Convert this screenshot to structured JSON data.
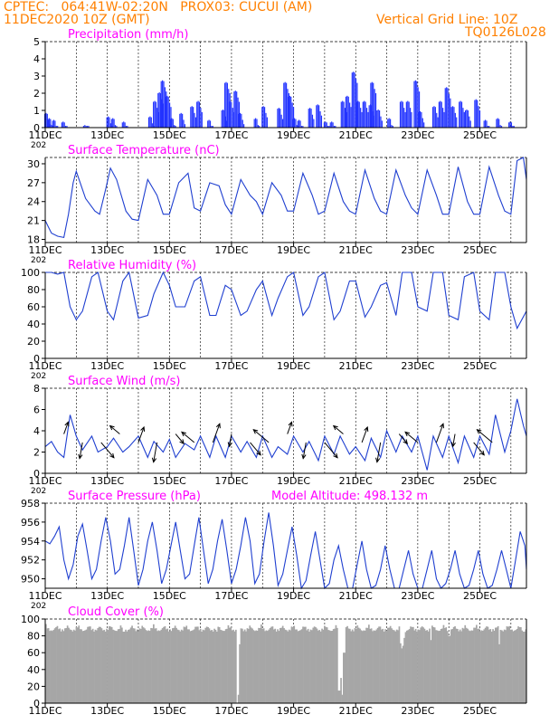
{
  "header": {
    "line1": "CPTEC:   064:41W-02:20N   PROX03: CUCUI (AM)",
    "line2": "11DEC2020 10Z (GMT)",
    "grid_note": "Vertical Grid Line: 10Z",
    "code": "TQ0126L028"
  },
  "colors": {
    "header": "#ff8000",
    "title": "#ff00ff",
    "line": "#1f3fd0",
    "bar": "#2233ff",
    "cloud": "#a6a6a6",
    "arrow": "#000000"
  },
  "x_axis": {
    "tick_labels": [
      "11DEC",
      "13DEC",
      "15DEC",
      "17DEC",
      "19DEC",
      "21DEC",
      "23DEC",
      "25DEC"
    ],
    "year_stub": "202"
  },
  "model_altitude": "Model Altitude: 498.132 m",
  "chart_data": [
    {
      "id": "precip",
      "type": "bar",
      "title": "Precipitation  (mm/h)",
      "ylim": [
        0,
        5
      ],
      "yticks": [
        0,
        1,
        2,
        3,
        4,
        5
      ],
      "color": "#2233ff",
      "x_range_days": [
        0,
        15.5
      ],
      "events": [
        [
          0.05,
          0.8
        ],
        [
          0.15,
          0.5
        ],
        [
          0.3,
          0.4
        ],
        [
          0.6,
          0.3
        ],
        [
          1.3,
          0.1
        ],
        [
          2.05,
          0.6
        ],
        [
          2.2,
          0.5
        ],
        [
          2.55,
          0.3
        ],
        [
          3.4,
          0.6
        ],
        [
          3.55,
          1.5
        ],
        [
          3.7,
          2.0
        ],
        [
          3.8,
          2.7
        ],
        [
          3.95,
          1.8
        ],
        [
          4.1,
          0.5
        ],
        [
          4.4,
          0.8
        ],
        [
          4.75,
          1.2
        ],
        [
          4.95,
          1.5
        ],
        [
          5.3,
          0.4
        ],
        [
          5.75,
          1.0
        ],
        [
          5.85,
          2.6
        ],
        [
          5.98,
          1.5
        ],
        [
          6.15,
          2.1
        ],
        [
          6.3,
          0.8
        ],
        [
          6.8,
          0.5
        ],
        [
          7.05,
          1.2
        ],
        [
          7.55,
          1.1
        ],
        [
          7.75,
          2.6
        ],
        [
          7.9,
          1.8
        ],
        [
          8.05,
          0.5
        ],
        [
          8.2,
          0.4
        ],
        [
          8.55,
          1.1
        ],
        [
          8.8,
          1.3
        ],
        [
          9.05,
          0.3
        ],
        [
          9.25,
          0.3
        ],
        [
          9.6,
          1.5
        ],
        [
          9.75,
          1.8
        ],
        [
          9.95,
          3.2
        ],
        [
          10.1,
          1.5
        ],
        [
          10.3,
          1.5
        ],
        [
          10.5,
          1.3
        ],
        [
          10.55,
          2.6
        ],
        [
          10.75,
          1.0
        ],
        [
          11.1,
          0.5
        ],
        [
          11.5,
          1.5
        ],
        [
          11.7,
          1.5
        ],
        [
          11.95,
          2.7
        ],
        [
          12.1,
          0.9
        ],
        [
          12.55,
          1.2
        ],
        [
          12.75,
          1.5
        ],
        [
          12.95,
          2.3
        ],
        [
          13.15,
          1.2
        ],
        [
          13.4,
          1.5
        ],
        [
          13.6,
          1.0
        ],
        [
          13.9,
          1.6
        ],
        [
          14.2,
          0.4
        ],
        [
          14.6,
          0.5
        ],
        [
          15.0,
          0.3
        ]
      ]
    },
    {
      "id": "temp",
      "type": "line",
      "title": "Surface Temperature (nC)",
      "ylim": [
        17.5,
        31
      ],
      "yticks": [
        18,
        21,
        24,
        27,
        30
      ],
      "color": "#1f3fd0",
      "x_range_days": [
        0,
        15.5
      ],
      "x": [
        0,
        0.1,
        0.2,
        0.4,
        0.6,
        0.75,
        0.9,
        1.0,
        1.3,
        1.6,
        1.75,
        1.95,
        2.1,
        2.3,
        2.6,
        2.8,
        3.0,
        3.3,
        3.6,
        3.8,
        4.0,
        4.3,
        4.6,
        4.8,
        5.0,
        5.3,
        5.6,
        5.8,
        6.0,
        6.3,
        6.6,
        6.8,
        7.0,
        7.3,
        7.6,
        7.8,
        8.0,
        8.3,
        8.6,
        8.8,
        9.0,
        9.3,
        9.6,
        9.8,
        10.0,
        10.3,
        10.6,
        10.8,
        11.0,
        11.3,
        11.6,
        11.8,
        12.0,
        12.3,
        12.6,
        12.8,
        13.0,
        13.3,
        13.6,
        13.8,
        14.0,
        14.3,
        14.6,
        14.8,
        15.0,
        15.2,
        15.4,
        15.5
      ],
      "values": [
        21.0,
        20.0,
        19.0,
        18.5,
        18.3,
        22.0,
        27.0,
        28.8,
        24.5,
        22.5,
        22.0,
        26.0,
        29.3,
        27.5,
        22.5,
        21.2,
        21.0,
        27.5,
        25.0,
        22.0,
        22.0,
        27.0,
        28.5,
        23.0,
        22.5,
        27.0,
        26.5,
        23.5,
        22.0,
        27.5,
        25.0,
        24.0,
        22.0,
        27.0,
        25.0,
        22.5,
        22.5,
        28.5,
        25.0,
        22.0,
        22.5,
        28.5,
        24.0,
        22.5,
        22.0,
        29.0,
        24.5,
        22.5,
        22.0,
        29.0,
        25.0,
        23.0,
        22.0,
        29.0,
        25.0,
        22.0,
        22.0,
        29.5,
        24.0,
        22.0,
        22.0,
        29.5,
        25.0,
        22.5,
        22.0,
        30.5,
        31.0,
        27.5
      ]
    },
    {
      "id": "rh",
      "type": "line",
      "title": "Relative Humidity (%)",
      "ylim": [
        0,
        100
      ],
      "yticks": [
        0,
        20,
        40,
        60,
        80,
        100
      ],
      "color": "#1f3fd0",
      "x_range_days": [
        0,
        15.5
      ],
      "x": [
        0,
        0.2,
        0.4,
        0.6,
        0.8,
        1.0,
        1.2,
        1.5,
        1.7,
        2.0,
        2.2,
        2.5,
        2.7,
        3.0,
        3.3,
        3.5,
        3.8,
        4.0,
        4.2,
        4.5,
        4.8,
        5.0,
        5.3,
        5.5,
        5.8,
        6.0,
        6.3,
        6.5,
        6.8,
        7.0,
        7.3,
        7.5,
        7.8,
        8.0,
        8.3,
        8.5,
        8.8,
        9.0,
        9.3,
        9.5,
        9.8,
        10.0,
        10.3,
        10.5,
        10.8,
        11.0,
        11.3,
        11.5,
        11.8,
        12.0,
        12.3,
        12.5,
        12.8,
        13.0,
        13.3,
        13.5,
        13.8,
        14.0,
        14.3,
        14.5,
        14.8,
        15.0,
        15.2,
        15.5
      ],
      "values": [
        100,
        100,
        98,
        100,
        60,
        45,
        55,
        95,
        100,
        55,
        45,
        90,
        100,
        47,
        50,
        75,
        100,
        85,
        60,
        60,
        90,
        95,
        50,
        50,
        85,
        80,
        50,
        55,
        80,
        90,
        50,
        70,
        95,
        100,
        50,
        60,
        95,
        100,
        45,
        55,
        90,
        90,
        48,
        60,
        85,
        88,
        50,
        100,
        100,
        60,
        55,
        100,
        100,
        50,
        45,
        95,
        100,
        55,
        45,
        100,
        100,
        60,
        35,
        55
      ]
    },
    {
      "id": "wind",
      "type": "line",
      "title": "Surface Wind (m/s)",
      "ylim": [
        0,
        8
      ],
      "yticks": [
        0,
        2,
        4,
        6,
        8
      ],
      "color": "#1f3fd0",
      "x_range_days": [
        0,
        15.5
      ],
      "x": [
        0,
        0.2,
        0.4,
        0.6,
        0.8,
        1.0,
        1.2,
        1.5,
        1.7,
        2.0,
        2.2,
        2.5,
        2.7,
        3.0,
        3.3,
        3.5,
        3.8,
        4.0,
        4.2,
        4.5,
        4.8,
        5.0,
        5.3,
        5.5,
        5.8,
        6.0,
        6.3,
        6.5,
        6.8,
        7.0,
        7.3,
        7.5,
        7.8,
        8.0,
        8.3,
        8.5,
        8.8,
        9.0,
        9.3,
        9.5,
        9.8,
        10.0,
        10.3,
        10.5,
        10.8,
        11.0,
        11.3,
        11.5,
        11.8,
        12.0,
        12.3,
        12.5,
        12.8,
        13.0,
        13.3,
        13.5,
        13.8,
        14.0,
        14.3,
        14.5,
        14.8,
        15.0,
        15.2,
        15.4,
        15.5
      ],
      "values": [
        2.5,
        3.0,
        2.0,
        1.5,
        5.5,
        3.5,
        2.2,
        3.5,
        2.0,
        2.5,
        3.3,
        2.0,
        2.5,
        3.5,
        1.5,
        3.0,
        2.0,
        3.2,
        1.5,
        2.8,
        2.2,
        3.5,
        1.5,
        3.5,
        1.5,
        3.5,
        2.0,
        3.0,
        1.5,
        3.5,
        1.5,
        2.5,
        1.8,
        3.5,
        2.0,
        3.0,
        1.2,
        3.5,
        1.8,
        3.5,
        1.8,
        2.5,
        1.2,
        3.3,
        1.5,
        4.0,
        2.0,
        3.5,
        2.0,
        3.5,
        0.3,
        3.5,
        1.5,
        3.5,
        1.0,
        3.5,
        1.5,
        3.5,
        1.8,
        5.5,
        2.0,
        4.0,
        7.0,
        4.5,
        3.5
      ]
    },
    {
      "id": "pressure",
      "type": "line",
      "title": "Surface Pressure (hPa)",
      "ylim": [
        949,
        958
      ],
      "yticks": [
        950,
        952,
        954,
        956,
        958
      ],
      "color": "#1f3fd0",
      "x_range_days": [
        0,
        15.5
      ],
      "x": [
        0,
        0.15,
        0.3,
        0.45,
        0.6,
        0.75,
        0.9,
        1.05,
        1.2,
        1.35,
        1.5,
        1.65,
        1.8,
        1.95,
        2.1,
        2.25,
        2.4,
        2.55,
        2.7,
        2.85,
        3.0,
        3.15,
        3.3,
        3.45,
        3.6,
        3.75,
        3.9,
        4.05,
        4.2,
        4.35,
        4.5,
        4.65,
        4.8,
        4.95,
        5.1,
        5.25,
        5.4,
        5.55,
        5.7,
        5.85,
        6.0,
        6.15,
        6.3,
        6.45,
        6.6,
        6.75,
        6.9,
        7.05,
        7.2,
        7.35,
        7.5,
        7.65,
        7.8,
        7.95,
        8.1,
        8.25,
        8.4,
        8.55,
        8.7,
        8.85,
        9.0,
        9.15,
        9.3,
        9.45,
        9.6,
        9.75,
        9.9,
        10.05,
        10.2,
        10.35,
        10.5,
        10.65,
        10.8,
        10.95,
        11.1,
        11.25,
        11.4,
        11.55,
        11.7,
        11.85,
        12.0,
        12.15,
        12.3,
        12.45,
        12.6,
        12.75,
        12.9,
        13.05,
        13.2,
        13.35,
        13.5,
        13.65,
        13.8,
        13.95,
        14.1,
        14.25,
        14.4,
        14.55,
        14.7,
        14.85,
        15.0,
        15.15,
        15.3,
        15.45,
        15.5
      ],
      "values": [
        954,
        953.7,
        954.5,
        955.5,
        952,
        950,
        951.5,
        954.5,
        955.8,
        953,
        950,
        951,
        954,
        956.5,
        954,
        950.5,
        951,
        953.5,
        956.5,
        953,
        949.3,
        951,
        954,
        956,
        953,
        949.5,
        951,
        953.5,
        956,
        953,
        950,
        950.5,
        953.5,
        956.5,
        953,
        949.5,
        951,
        954,
        956.3,
        953,
        949.5,
        951,
        953.5,
        956.5,
        954,
        949.5,
        950.5,
        954,
        957,
        953.5,
        949.3,
        950.5,
        953,
        955.5,
        952.5,
        949,
        949.8,
        952.5,
        955,
        952,
        949,
        949.5,
        952,
        953.5,
        951,
        949,
        949,
        951.5,
        954,
        951,
        949,
        949.3,
        951,
        953.5,
        951,
        949,
        949,
        951,
        953,
        950.5,
        949,
        949,
        951,
        953,
        950,
        949,
        949.5,
        951,
        953,
        950.5,
        949,
        949.3,
        951,
        953,
        950.5,
        949,
        949.3,
        951,
        953,
        951,
        949,
        952,
        955,
        953.5,
        951
      ]
    },
    {
      "id": "cloud",
      "type": "area",
      "title": "Cloud Cover (%)",
      "ylim": [
        0,
        100
      ],
      "yticks": [
        0,
        20,
        40,
        60,
        80,
        100
      ],
      "color": "#a6a6a6",
      "x_range_days": [
        0,
        15.5
      ],
      "dips": [
        [
          6.15,
          0
        ],
        [
          6.2,
          10
        ],
        [
          6.25,
          70
        ],
        [
          9.45,
          15
        ],
        [
          9.5,
          30
        ],
        [
          9.55,
          10
        ],
        [
          9.6,
          60
        ],
        [
          2.5,
          85
        ],
        [
          4.0,
          92
        ],
        [
          5.5,
          85
        ],
        [
          11.5,
          70
        ],
        [
          12.4,
          75
        ],
        [
          13.0,
          80
        ],
        [
          14.6,
          70
        ],
        [
          15.4,
          85
        ]
      ]
    }
  ]
}
